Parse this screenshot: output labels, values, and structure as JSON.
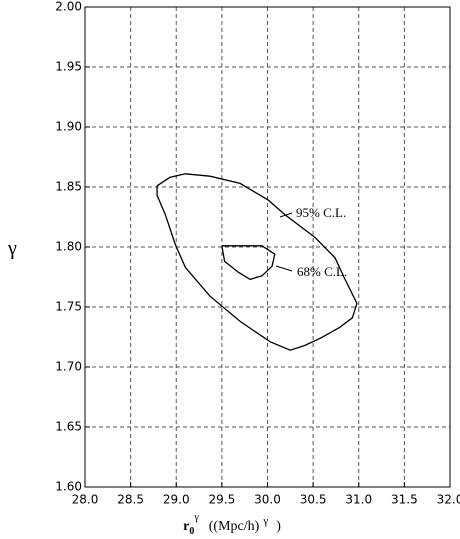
{
  "chart_data": {
    "type": "contour",
    "ylabel": "γ",
    "xlabel": {
      "base": "r",
      "sub": "0",
      "sup": "γ",
      "unit": "((Mpc/h)",
      "unit_sup": "γ",
      "close": ")"
    },
    "xlim": [
      28.0,
      32.0
    ],
    "ylim": [
      1.6,
      2.0
    ],
    "xticks": [
      {
        "value": 28,
        "label": "28.0"
      },
      {
        "value": 28.5,
        "label": "28.5"
      },
      {
        "value": 29,
        "label": "29.0"
      },
      {
        "value": 29.5,
        "label": "29.5"
      },
      {
        "value": 30,
        "label": "30.0"
      },
      {
        "value": 30.5,
        "label": "30.5"
      },
      {
        "value": 31,
        "label": "31.0"
      },
      {
        "value": 31.5,
        "label": "31.5"
      },
      {
        "value": 32,
        "label": "32.0"
      }
    ],
    "yticks": [
      {
        "value": 1.6,
        "label": "1.60"
      },
      {
        "value": 1.65,
        "label": "1.65"
      },
      {
        "value": 1.7,
        "label": "1.70"
      },
      {
        "value": 1.75,
        "label": "1.75"
      },
      {
        "value": 1.8,
        "label": "1.80"
      },
      {
        "value": 1.85,
        "label": "1.85"
      },
      {
        "value": 1.9,
        "label": "1.90"
      },
      {
        "value": 1.95,
        "label": "1.95"
      },
      {
        "value": 2,
        "label": "2.00"
      }
    ],
    "grid": true,
    "series": [
      {
        "label": "95% C.L.",
        "color": "#000000",
        "x": [
          28.79,
          28.93,
          29.1,
          29.37,
          29.7,
          30.01,
          30.19,
          30.52,
          30.74,
          30.85,
          30.98,
          30.93,
          30.79,
          30.58,
          30.41,
          30.25,
          30.03,
          29.7,
          29.37,
          29.1,
          28.99,
          28.88,
          28.79,
          28.79
        ],
        "y": [
          1.851,
          1.858,
          1.861,
          1.859,
          1.853,
          1.839,
          1.827,
          1.808,
          1.791,
          1.773,
          1.753,
          1.741,
          1.733,
          1.724,
          1.718,
          1.714,
          1.721,
          1.738,
          1.759,
          1.783,
          1.802,
          1.827,
          1.843,
          1.851
        ]
      },
      {
        "label": "68% C.L.",
        "color": "#000000",
        "x": [
          29.5,
          29.7,
          29.94,
          30.08,
          30.05,
          29.94,
          29.81,
          29.68,
          29.53,
          29.5
        ],
        "y": [
          1.801,
          1.801,
          1.801,
          1.794,
          1.784,
          1.776,
          1.773,
          1.779,
          1.788,
          1.801
        ]
      }
    ]
  }
}
